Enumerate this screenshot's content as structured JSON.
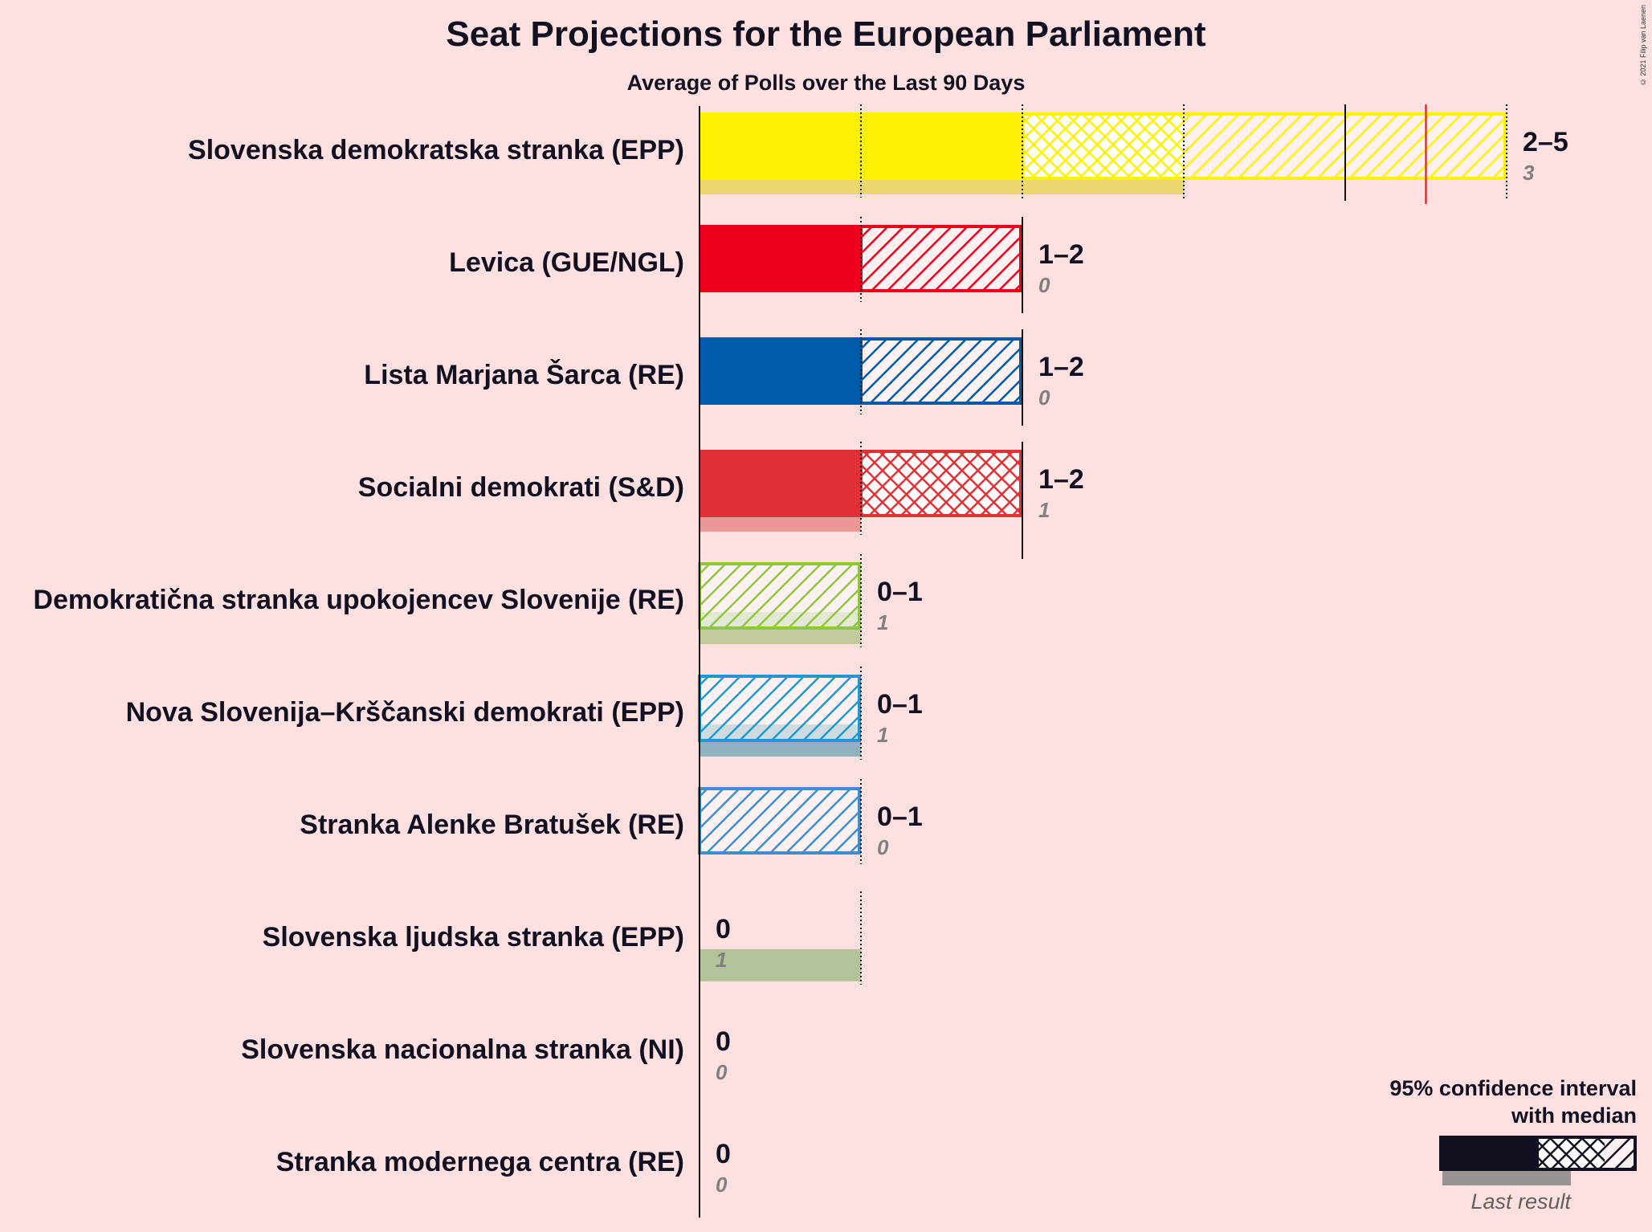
{
  "title": "Seat Projections for the European Parliament",
  "subtitle": "Average of Polls over the Last 90 Days",
  "copyright": "© 2021 Filip van Laenen",
  "legend": {
    "line1": "95% confidence interval",
    "line2": "with median",
    "last_result": "Last result"
  },
  "chart_data": {
    "type": "bar",
    "orientation": "horizontal",
    "title": "Seat Projections for the European Parliament",
    "subtitle": "Average of Polls over the Last 90 Days",
    "xlim": [
      0,
      5
    ],
    "majority_line": 4.5,
    "parties": [
      {
        "name": "Slovenska demokratska stranka (EPP)",
        "color": "#FFF200",
        "last_color": "#E8D45A",
        "ci_low": 2,
        "median": 3,
        "ci_high": 5,
        "last": 3,
        "label": "2–5",
        "last_label": "3",
        "marks": [
          3,
          4,
          5
        ]
      },
      {
        "name": "Levica (GUE/NGL)",
        "color": "#EE001C",
        "last_color": "#EE001C",
        "ci_low": 1,
        "median": 1,
        "ci_high": 2,
        "last": 0,
        "label": "1–2",
        "last_label": "0",
        "marks": [
          2
        ]
      },
      {
        "name": "Lista Marjana Šarca (RE)",
        "color": "#005BAA",
        "last_color": "#005BAA",
        "ci_low": 1,
        "median": 1,
        "ci_high": 2,
        "last": 0,
        "label": "1–2",
        "last_label": "0",
        "marks": [
          2
        ]
      },
      {
        "name": "Socialni demokrati (S&D)",
        "color": "#E03136",
        "last_color": "#E78A8A",
        "ci_low": 1,
        "median": 2,
        "ci_high": 2,
        "last": 1,
        "label": "1–2",
        "last_label": "1",
        "marks": [
          2
        ]
      },
      {
        "name": "Demokratična stranka upokojencev Slovenije (RE)",
        "color": "#8DC63F",
        "last_color": "#BAC78E",
        "ci_low": 0,
        "median": 0,
        "ci_high": 1,
        "last": 1,
        "label": "0–1",
        "last_label": "1",
        "marks": []
      },
      {
        "name": "Nova Slovenija–Krščanski demokrati (EPP)",
        "color": "#1D9ACD",
        "last_color": "#7FA8B8",
        "ci_low": 0,
        "median": 0,
        "ci_high": 1,
        "last": 1,
        "label": "0–1",
        "last_label": "1",
        "marks": []
      },
      {
        "name": "Stranka Alenke Bratušek (RE)",
        "color": "#3D8ECF",
        "last_color": "#3D8ECF",
        "ci_low": 0,
        "median": 0,
        "ci_high": 1,
        "last": 0,
        "label": "0–1",
        "last_label": "0",
        "marks": []
      },
      {
        "name": "Slovenska ljudska stranka (EPP)",
        "color": "#A5BD8C",
        "last_color": "#A5BD8C",
        "ci_low": 0,
        "median": 0,
        "ci_high": 0,
        "last": 1,
        "label": "0",
        "last_label": "1",
        "marks": []
      },
      {
        "name": "Slovenska nacionalna stranka (NI)",
        "color": "#333333",
        "last_color": "#333333",
        "ci_low": 0,
        "median": 0,
        "ci_high": 0,
        "last": 0,
        "label": "0",
        "last_label": "0",
        "marks": []
      },
      {
        "name": "Stranka modernega centra (RE)",
        "color": "#333333",
        "last_color": "#333333",
        "ci_low": 0,
        "median": 0,
        "ci_high": 0,
        "last": 0,
        "label": "0",
        "last_label": "0",
        "marks": []
      }
    ]
  }
}
